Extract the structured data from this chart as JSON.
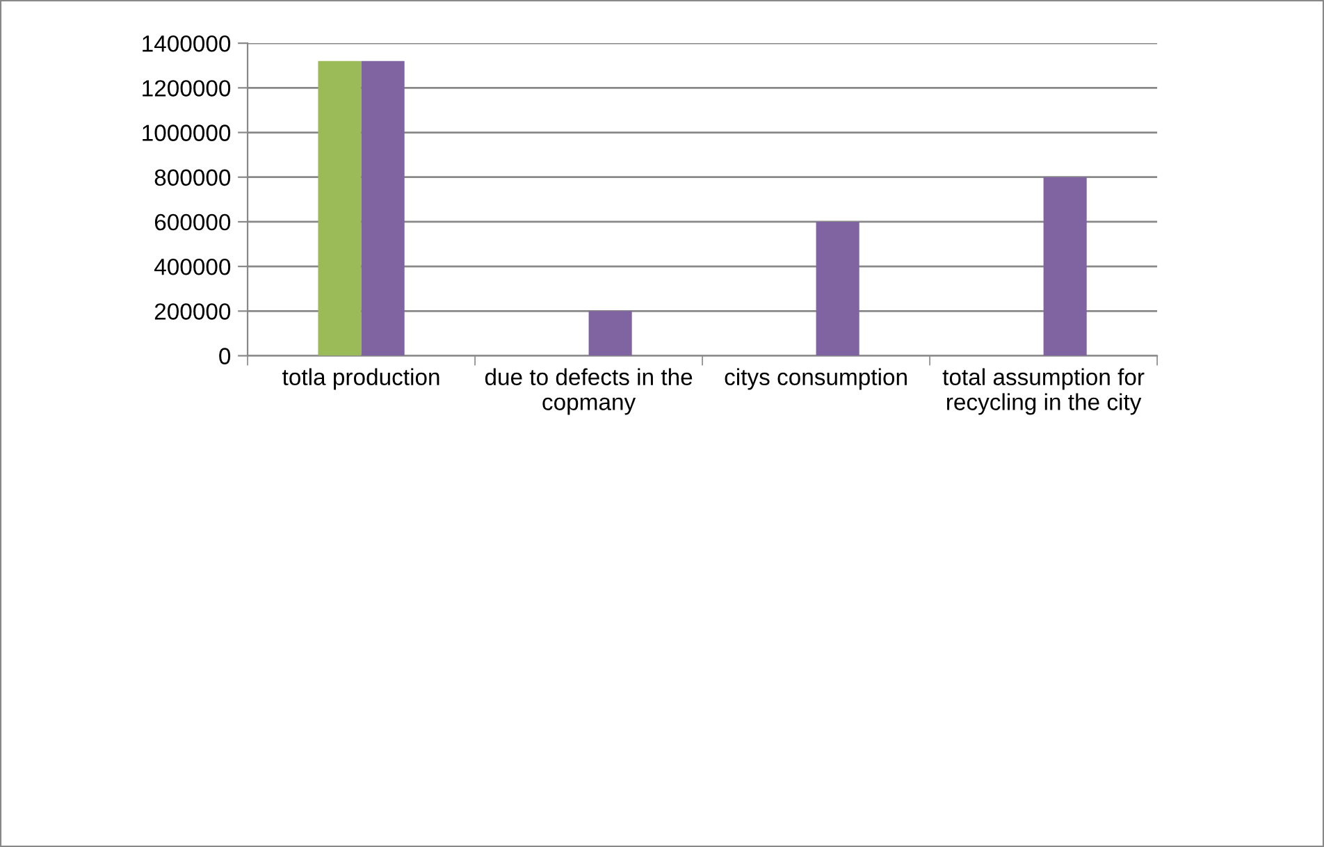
{
  "chart_data": {
    "type": "bar",
    "categories": [
      "totla production",
      "due to defects in the copmany",
      "citys consumption",
      "total assumption for recycling in the city"
    ],
    "series": [
      {
        "color": "#9bbb59",
        "values": [
          1320000,
          null,
          null,
          null
        ]
      },
      {
        "color": "#8064a2",
        "values": [
          1320000,
          200000,
          600000,
          800000
        ]
      }
    ],
    "ylim": [
      0,
      1400000
    ],
    "yticks": [
      0,
      200000,
      400000,
      600000,
      800000,
      1000000,
      1200000,
      1400000
    ],
    "grid": "y",
    "legend": false
  }
}
